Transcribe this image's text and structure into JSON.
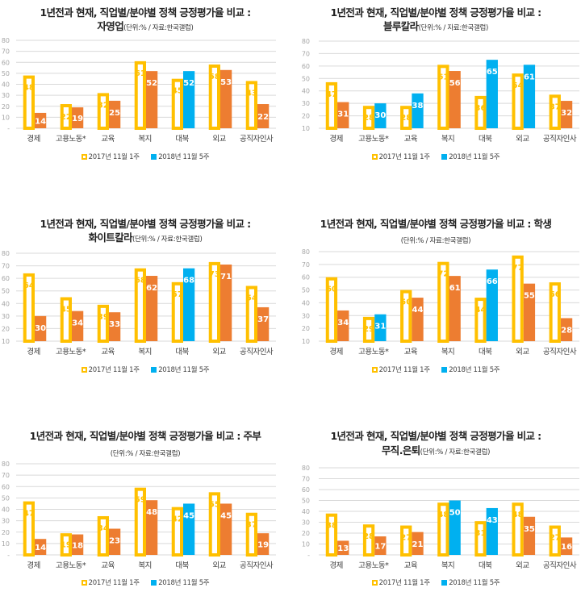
{
  "colors": {
    "prev_outline": "#FFC000",
    "prev_label": "#FFC000",
    "cur_orange": "#ED7D31",
    "cur_blue": "#00B0F0",
    "grid": "#D9D9D9",
    "tick": "#A6A6A6",
    "category_text": "#404040"
  },
  "legend": {
    "prev": "2017년 11월 1주",
    "cur": "2018년 11월 5주"
  },
  "chart_data": [
    {
      "type": "bar",
      "title": "1년전과 현재, 직업별/분야별 정책 긍정평가율 비교 :",
      "group": "자영업",
      "unit_note": "(단위:% / 자료:한국갤럽)",
      "title_layout": "two-line-group-with-unit",
      "categories": [
        "경제",
        "고용노동*",
        "교육",
        "복지",
        "대북",
        "외교",
        "공직자인사"
      ],
      "series": [
        {
          "name": "2017년 11월 1주",
          "values": [
            48,
            22,
            32,
            61,
            45,
            58,
            43
          ]
        },
        {
          "name": "2018년 11월 5주",
          "values": [
            14,
            19,
            25,
            52,
            52,
            53,
            22
          ],
          "colors": [
            "orange",
            "orange",
            "orange",
            "orange",
            "blue",
            "orange",
            "orange"
          ]
        }
      ],
      "yticks": [
        "-",
        "10",
        "20",
        "30",
        "40",
        "50",
        "60",
        "70",
        "80"
      ],
      "ylim": [
        0,
        80
      ],
      "grid": true,
      "legend_position": "bottom"
    },
    {
      "type": "bar",
      "title": "1년전과 현재, 직업별/분야별 정책 긍정평가율 비교 :",
      "group": "블루칼라",
      "unit_note": "(단위:% / 자료:한국갤럽)",
      "title_layout": "two-line-group-with-unit",
      "categories": [
        "경제",
        "고용노동*",
        "교육",
        "복지",
        "대북",
        "외교",
        "공직자인사"
      ],
      "series": [
        {
          "name": "2017년 11월 1주",
          "values": [
            47,
            28,
            28,
            61,
            36,
            54,
            37
          ]
        },
        {
          "name": "2018년 11월 5주",
          "values": [
            31,
            30,
            38,
            56,
            65,
            61,
            32
          ],
          "colors": [
            "orange",
            "blue",
            "blue",
            "orange",
            "blue",
            "blue",
            "orange"
          ]
        }
      ],
      "yticks": [
        "10",
        "20",
        "30",
        "40",
        "50",
        "60",
        "70",
        "80"
      ],
      "ylim": [
        10,
        80
      ],
      "grid": true,
      "legend_position": "bottom"
    },
    {
      "type": "bar",
      "title": "1년전과 현재, 직업별/분야별 정책 긍정평가율 비교 :",
      "group": "화이트칼라",
      "unit_note": "(단위:% / 자료:한국갤럽)",
      "title_layout": "two-line-group-with-unit",
      "categories": [
        "경제",
        "고용노동*",
        "교육",
        "복지",
        "대북",
        "외교",
        "공직자인사"
      ],
      "series": [
        {
          "name": "2017년 11월 1주",
          "values": [
            64,
            45,
            39,
            68,
            57,
            73,
            54
          ]
        },
        {
          "name": "2018년 11월 5주",
          "values": [
            30,
            34,
            33,
            62,
            68,
            71,
            37
          ],
          "colors": [
            "orange",
            "orange",
            "orange",
            "orange",
            "blue",
            "orange",
            "orange"
          ]
        }
      ],
      "yticks": [
        "10",
        "20",
        "30",
        "40",
        "50",
        "60",
        "70",
        "80"
      ],
      "ylim": [
        10,
        80
      ],
      "grid": true,
      "legend_position": "bottom"
    },
    {
      "type": "bar",
      "title": "1년전과 현재, 직업별/분야별 정책 긍정평가율 비교 : 학생",
      "group": "",
      "unit_note": "(단위:% / 자료:한국갤럽)",
      "title_layout": "one-line-then-unit",
      "categories": [
        "경제",
        "고용노동*",
        "교육",
        "복지",
        "대북",
        "외교",
        "공직자인사"
      ],
      "series": [
        {
          "name": "2017년 11월 1주",
          "values": [
            60,
            29,
            50,
            72,
            44,
            77,
            56
          ]
        },
        {
          "name": "2018년 11월 5주",
          "values": [
            34,
            31,
            44,
            61,
            66,
            55,
            28
          ],
          "colors": [
            "orange",
            "blue",
            "orange",
            "orange",
            "blue",
            "orange",
            "orange"
          ]
        }
      ],
      "yticks": [
        "10",
        "20",
        "30",
        "40",
        "50",
        "60",
        "70",
        "80"
      ],
      "ylim": [
        10,
        80
      ],
      "grid": true,
      "legend_position": "bottom"
    },
    {
      "type": "bar",
      "title": "1년전과 현재, 직업별/분야별 정책 긍정평가율 비교 : 주부",
      "group": "",
      "unit_note": "(단위:% / 자료:한국갤럽)",
      "title_layout": "one-line-then-unit",
      "categories": [
        "경제",
        "고용노동*",
        "교육",
        "복지",
        "대북",
        "외교",
        "공직자인사"
      ],
      "series": [
        {
          "name": "2017년 11월 1주",
          "values": [
            47,
            19,
            34,
            59,
            42,
            55,
            37
          ]
        },
        {
          "name": "2018년 11월 5주",
          "values": [
            14,
            18,
            23,
            48,
            45,
            45,
            19
          ],
          "colors": [
            "orange",
            "orange",
            "orange",
            "orange",
            "blue",
            "orange",
            "orange"
          ]
        }
      ],
      "yticks": [
        "-",
        "10",
        "20",
        "30",
        "40",
        "50",
        "60",
        "70",
        "80"
      ],
      "ylim": [
        0,
        80
      ],
      "grid": true,
      "legend_position": "bottom"
    },
    {
      "type": "bar",
      "title": "1년전과 현재, 직업별/분야별 정책 긍정평가율 비교 :",
      "group": "무직.은퇴",
      "unit_note": "(단위:% / 자료:한국갤럽)",
      "title_layout": "two-line-group-with-unit",
      "categories": [
        "경제",
        "고용노동*",
        "교육",
        "복지",
        "대북",
        "외교",
        "공직자인사"
      ],
      "series": [
        {
          "name": "2017년 11월 1주",
          "values": [
            38,
            28,
            27,
            48,
            31,
            48,
            27
          ]
        },
        {
          "name": "2018년 11월 5주",
          "values": [
            13,
            17,
            21,
            50,
            43,
            35,
            16
          ],
          "colors": [
            "orange",
            "orange",
            "orange",
            "blue",
            "blue",
            "orange",
            "orange"
          ]
        }
      ],
      "yticks": [
        "-",
        "10",
        "20",
        "30",
        "40",
        "50",
        "60",
        "70",
        "80"
      ],
      "ylim": [
        0,
        80
      ],
      "grid": true,
      "legend_position": "bottom"
    }
  ]
}
